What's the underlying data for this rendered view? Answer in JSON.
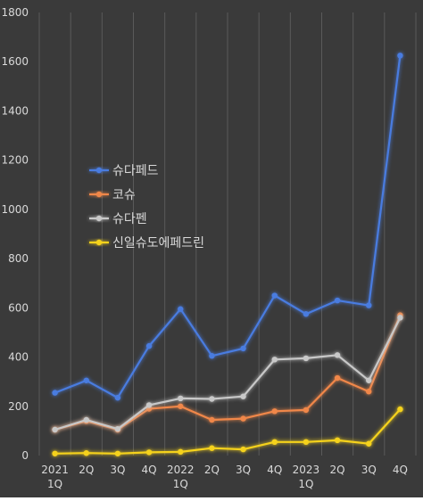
{
  "chart_data": {
    "type": "line",
    "title": "",
    "xlabel": "",
    "ylabel": "",
    "ylim": [
      0,
      1800
    ],
    "yticks": [
      0,
      200,
      400,
      600,
      800,
      1000,
      1200,
      1400,
      1600,
      1800
    ],
    "grid": "vertical",
    "legend": "left-middle",
    "background": "#3a3a3a",
    "grid_color": "#5a5a5a",
    "text_color": "#d9d9d9",
    "categories": [
      [
        "2021",
        "1Q"
      ],
      [
        "2Q"
      ],
      [
        "3Q"
      ],
      [
        "4Q"
      ],
      [
        "2022",
        "1Q"
      ],
      [
        "2Q"
      ],
      [
        "3Q"
      ],
      [
        "4Q"
      ],
      [
        "2023",
        "1Q"
      ],
      [
        "2Q"
      ],
      [
        "3Q"
      ],
      [
        "4Q"
      ]
    ],
    "series": [
      {
        "name": "슈다페드",
        "color": "#4a7ce0",
        "values": [
          255,
          305,
          235,
          445,
          595,
          405,
          435,
          650,
          575,
          630,
          610,
          1625
        ]
      },
      {
        "name": "코슈",
        "color": "#f0874a",
        "values": [
          105,
          140,
          105,
          190,
          200,
          145,
          150,
          180,
          185,
          315,
          260,
          570
        ]
      },
      {
        "name": "슈다펜",
        "color": "#c8c8c8",
        "values": [
          105,
          145,
          108,
          205,
          232,
          230,
          240,
          390,
          395,
          408,
          305,
          560
        ]
      },
      {
        "name": "신일슈도에페드린",
        "color": "#f5d21c",
        "values": [
          8,
          10,
          8,
          13,
          15,
          30,
          25,
          55,
          55,
          62,
          48,
          188
        ]
      }
    ]
  }
}
